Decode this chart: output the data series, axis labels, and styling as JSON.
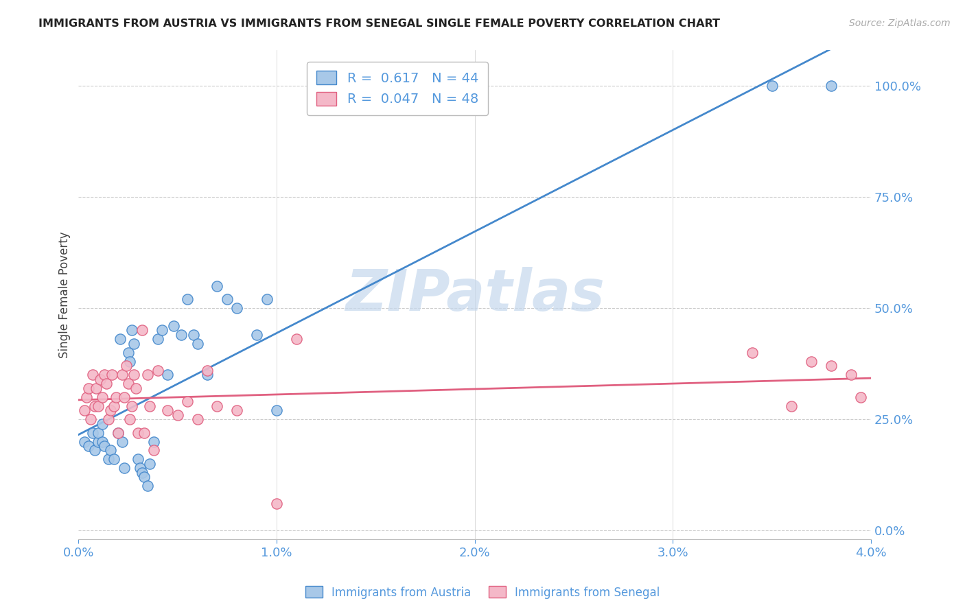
{
  "title": "IMMIGRANTS FROM AUSTRIA VS IMMIGRANTS FROM SENEGAL SINGLE FEMALE POVERTY CORRELATION CHART",
  "source": "Source: ZipAtlas.com",
  "ylabel": "Single Female Poverty",
  "color_austria": "#a8c8e8",
  "color_senegal": "#f4b8c8",
  "color_austria_line": "#4488cc",
  "color_senegal_line": "#e06080",
  "legend_label_austria": "Immigrants from Austria",
  "legend_label_senegal": "Immigrants from Senegal",
  "R_austria": 0.617,
  "N_austria": 44,
  "R_senegal": 0.047,
  "N_senegal": 48,
  "austria_x": [
    0.0003,
    0.0005,
    0.0007,
    0.0008,
    0.001,
    0.001,
    0.0012,
    0.0012,
    0.0013,
    0.0015,
    0.0016,
    0.0018,
    0.002,
    0.0021,
    0.0022,
    0.0023,
    0.0025,
    0.0026,
    0.0027,
    0.0028,
    0.003,
    0.0031,
    0.0032,
    0.0033,
    0.0035,
    0.0036,
    0.0038,
    0.004,
    0.0042,
    0.0045,
    0.0048,
    0.0052,
    0.0055,
    0.0058,
    0.006,
    0.0065,
    0.007,
    0.0075,
    0.008,
    0.009,
    0.0095,
    0.01,
    0.035,
    0.038
  ],
  "austria_y": [
    0.2,
    0.19,
    0.22,
    0.18,
    0.2,
    0.22,
    0.24,
    0.2,
    0.19,
    0.16,
    0.18,
    0.16,
    0.22,
    0.43,
    0.2,
    0.14,
    0.4,
    0.38,
    0.45,
    0.42,
    0.16,
    0.14,
    0.13,
    0.12,
    0.1,
    0.15,
    0.2,
    0.43,
    0.45,
    0.35,
    0.46,
    0.44,
    0.52,
    0.44,
    0.42,
    0.35,
    0.55,
    0.52,
    0.5,
    0.44,
    0.52,
    0.27,
    1.0,
    1.0
  ],
  "senegal_x": [
    0.0003,
    0.0004,
    0.0005,
    0.0006,
    0.0007,
    0.0008,
    0.0009,
    0.001,
    0.0011,
    0.0012,
    0.0013,
    0.0014,
    0.0015,
    0.0016,
    0.0017,
    0.0018,
    0.0019,
    0.002,
    0.0022,
    0.0023,
    0.0024,
    0.0025,
    0.0026,
    0.0027,
    0.0028,
    0.0029,
    0.003,
    0.0032,
    0.0033,
    0.0035,
    0.0036,
    0.0038,
    0.004,
    0.0045,
    0.005,
    0.0055,
    0.006,
    0.0065,
    0.007,
    0.008,
    0.01,
    0.011,
    0.034,
    0.036,
    0.037,
    0.038,
    0.039,
    0.0395
  ],
  "senegal_y": [
    0.27,
    0.3,
    0.32,
    0.25,
    0.35,
    0.28,
    0.32,
    0.28,
    0.34,
    0.3,
    0.35,
    0.33,
    0.25,
    0.27,
    0.35,
    0.28,
    0.3,
    0.22,
    0.35,
    0.3,
    0.37,
    0.33,
    0.25,
    0.28,
    0.35,
    0.32,
    0.22,
    0.45,
    0.22,
    0.35,
    0.28,
    0.18,
    0.36,
    0.27,
    0.26,
    0.29,
    0.25,
    0.36,
    0.28,
    0.27,
    0.06,
    0.43,
    0.4,
    0.28,
    0.38,
    0.37,
    0.35,
    0.3
  ],
  "xlim": [
    0.0,
    0.04
  ],
  "ylim": [
    -0.02,
    1.08
  ],
  "ytick_vals": [
    0.0,
    0.25,
    0.5,
    0.75,
    1.0
  ],
  "ytick_labels": [
    "0.0%",
    "25.0%",
    "50.0%",
    "75.0%",
    "100.0%"
  ],
  "xtick_vals": [
    0.0,
    0.01,
    0.02,
    0.03,
    0.04
  ],
  "xtick_labels": [
    "0.0%",
    "1.0%",
    "2.0%",
    "3.0%",
    "4.0%"
  ],
  "grid_color": "#cccccc",
  "background_color": "#ffffff",
  "title_color": "#222222",
  "axis_label_color": "#5599dd",
  "watermark_color": "#c5d8ed",
  "watermark_text": "ZIPatlas",
  "legend_text_1": "R =  0.617   N = 44",
  "legend_text_2": "R =  0.047   N = 48"
}
